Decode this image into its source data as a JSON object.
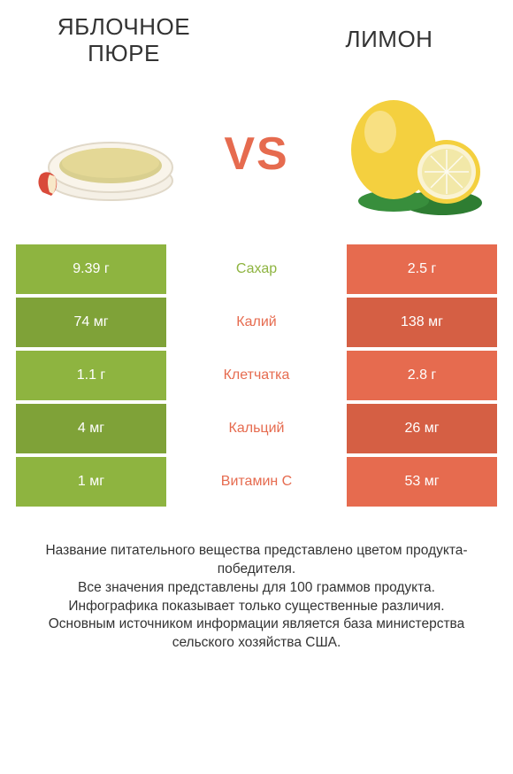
{
  "colors": {
    "left": "#8eb440",
    "right": "#e66b4f",
    "left_dark": "#7fa238",
    "right_dark": "#d55f44",
    "vs": "#e66b4f",
    "text": "#333333",
    "bg": "#ffffff"
  },
  "header": {
    "left_title": "ЯБЛОЧНОЕ\nПЮРЕ",
    "right_title": "ЛИМОН"
  },
  "vs_label": "VS",
  "comparison": {
    "rows": [
      {
        "left": "9.39 г",
        "label": "Сахар",
        "right": "2.5 г",
        "winner": "left"
      },
      {
        "left": "74 мг",
        "label": "Калий",
        "right": "138 мг",
        "winner": "right"
      },
      {
        "left": "1.1 г",
        "label": "Клетчатка",
        "right": "2.8 г",
        "winner": "right"
      },
      {
        "left": "4 мг",
        "label": "Кальций",
        "right": "26 мг",
        "winner": "right"
      },
      {
        "left": "1 мг",
        "label": "Витамин C",
        "right": "53 мг",
        "winner": "right"
      }
    ]
  },
  "footer": {
    "lines": [
      "Название питательного вещества представлено цветом продукта-победителя.",
      "Все значения представлены для 100 граммов продукта.",
      "Инфографика показывает только существенные различия.",
      "Основным источником информации является база министерства сельского хозяйства США."
    ]
  },
  "images": {
    "left_alt": "applesauce-bowl",
    "right_alt": "lemon"
  }
}
